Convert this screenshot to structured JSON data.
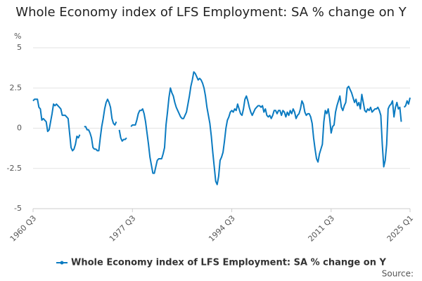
{
  "chart_data": {
    "type": "line",
    "title": "Whole Economy index of LFS Employment: SA % change on Y",
    "y_unit": "%",
    "source": "Source:",
    "categories": [
      "1960 Q3",
      null,
      null,
      null,
      null,
      null,
      null,
      null,
      null,
      null,
      null,
      null,
      null,
      null,
      null,
      null,
      null,
      null,
      null,
      null,
      null,
      null,
      null,
      null,
      null,
      null,
      null,
      null,
      null,
      null,
      null,
      null,
      null,
      null,
      null,
      null,
      null,
      null,
      null,
      null,
      null,
      null,
      null,
      null,
      null,
      null,
      null,
      null,
      null,
      null,
      null,
      null,
      null,
      null,
      null,
      null,
      null,
      null,
      null,
      null,
      null,
      null,
      null,
      null,
      null,
      null,
      null,
      null,
      "1977 Q3",
      null,
      null,
      null,
      null,
      null,
      null,
      null,
      null,
      null,
      null,
      null,
      null,
      null,
      null,
      null,
      null,
      null,
      null,
      null,
      null,
      null,
      null,
      null,
      null,
      null,
      null,
      null,
      null,
      null,
      null,
      null,
      null,
      null,
      null,
      null,
      null,
      null,
      null,
      null,
      null,
      null,
      null,
      null,
      null,
      null,
      null,
      null,
      null,
      null,
      null,
      null,
      null,
      null,
      null,
      null,
      null,
      null,
      null,
      null,
      null,
      null,
      null,
      null,
      null,
      null,
      null,
      null,
      "1994 Q3",
      null,
      null,
      null,
      null,
      null,
      null,
      null,
      null,
      null,
      null,
      null,
      null,
      null,
      null,
      null,
      null,
      null,
      null,
      null,
      null,
      null,
      null,
      null,
      null,
      null,
      null,
      null,
      null,
      null,
      null,
      null,
      null,
      null,
      null,
      null,
      null,
      null,
      null,
      null,
      null,
      null,
      null,
      null,
      null,
      null,
      null,
      null,
      null,
      null,
      null,
      null,
      null,
      null,
      null,
      null,
      null,
      null,
      null,
      null,
      null,
      null,
      null,
      null,
      null,
      null,
      null,
      null,
      "2011 Q3",
      null,
      null,
      null,
      null,
      null,
      null,
      null,
      null,
      null,
      null,
      null,
      null,
      null,
      null,
      null,
      null,
      null,
      null,
      null,
      null,
      null,
      null,
      null,
      null,
      null,
      null,
      null,
      null,
      null,
      null,
      null,
      null,
      null,
      null,
      null,
      null,
      null,
      null,
      null,
      null,
      null,
      null,
      null,
      null,
      null,
      null,
      null,
      null,
      null,
      null,
      null,
      null,
      null,
      "2025 Q1"
    ],
    "series": [
      {
        "name": "Whole Economy index of LFS Employment: SA % change on Y",
        "color": "#0b7bc1",
        "values": [
          1.7,
          1.8,
          1.8,
          1.8,
          1.3,
          1.2,
          0.5,
          0.6,
          0.5,
          0.4,
          -0.2,
          -0.1,
          0.4,
          0.9,
          1.5,
          1.4,
          1.5,
          1.4,
          1.3,
          1.2,
          0.8,
          0.8,
          0.8,
          0.7,
          0.6,
          -0.3,
          -1.2,
          -1.4,
          -1.3,
          -1.0,
          -0.5,
          -0.6,
          -0.4,
          null,
          null,
          0.1,
          0.1,
          -0.1,
          -0.1,
          -0.3,
          -0.6,
          -1.2,
          -1.3,
          -1.3,
          -1.4,
          -1.4,
          -0.6,
          0.1,
          0.6,
          1.2,
          1.6,
          1.8,
          1.6,
          1.3,
          0.6,
          0.3,
          0.2,
          0.4,
          null,
          -0.1,
          -0.6,
          -0.8,
          -0.7,
          -0.7,
          -0.6,
          null,
          null,
          0.1,
          0.2,
          0.2,
          0.2,
          0.5,
          0.9,
          1.1,
          1.1,
          1.2,
          0.9,
          0.4,
          -0.3,
          -1.0,
          -1.8,
          -2.3,
          -2.8,
          -2.8,
          -2.4,
          -2.0,
          -1.9,
          -1.9,
          -1.9,
          -1.6,
          -1.2,
          0.2,
          1.0,
          1.9,
          2.5,
          2.2,
          2.0,
          1.6,
          1.3,
          1.1,
          0.9,
          0.7,
          0.6,
          0.6,
          0.8,
          1.0,
          1.5,
          2.0,
          2.6,
          3.0,
          3.5,
          3.4,
          3.2,
          3.0,
          3.1,
          3.0,
          2.8,
          2.5,
          2.0,
          1.3,
          0.8,
          0.3,
          -0.5,
          -1.5,
          -2.4,
          -3.3,
          -3.5,
          -3.0,
          -2.0,
          -1.8,
          -1.5,
          -0.8,
          0.0,
          0.5,
          0.7,
          1.0,
          1.1,
          1.0,
          1.2,
          1.1,
          1.5,
          1.2,
          0.9,
          0.8,
          1.2,
          1.8,
          2.0,
          1.7,
          1.3,
          1.0,
          0.8,
          1.0,
          1.2,
          1.3,
          1.4,
          1.4,
          1.3,
          1.4,
          1.0,
          1.2,
          0.8,
          0.7,
          0.8,
          0.6,
          0.8,
          1.1,
          1.1,
          0.9,
          1.1,
          1.1,
          0.8,
          1.1,
          1.0,
          0.7,
          1.0,
          0.8,
          1.1,
          0.9,
          1.2,
          1.0,
          0.6,
          0.8,
          0.9,
          1.2,
          1.7,
          1.5,
          1.0,
          0.8,
          0.9,
          0.9,
          0.7,
          0.3,
          -0.6,
          -1.3,
          -1.9,
          -2.1,
          -1.6,
          -1.3,
          -1.0,
          0.4,
          1.1,
          0.9,
          1.2,
          0.6,
          -0.3,
          0.1,
          0.2,
          1.0,
          1.4,
          1.7,
          2.0,
          1.3,
          1.1,
          1.4,
          1.6,
          2.5,
          2.6,
          2.4,
          2.2,
          1.9,
          1.6,
          1.8,
          1.4,
          1.6,
          1.2,
          2.1,
          1.6,
          1.1,
          1.0,
          1.2,
          1.1,
          1.3,
          1.0,
          1.1,
          1.2,
          1.2,
          1.3,
          1.1,
          0.8,
          -1.0,
          -2.4,
          -2.0,
          -1.0,
          1.2,
          1.4,
          1.5,
          1.7,
          0.7,
          1.3,
          1.6,
          1.2,
          1.3,
          0.4,
          null,
          1.3,
          1.4,
          1.7,
          1.5,
          1.9
        ]
      }
    ],
    "ylim": [
      -5,
      5
    ],
    "yticks": [
      5,
      2.5,
      0,
      -2.5,
      -5
    ],
    "grid": true
  }
}
